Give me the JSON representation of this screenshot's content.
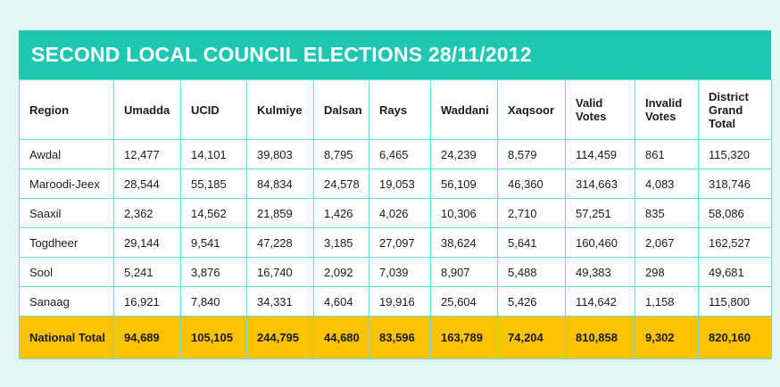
{
  "title": "SECOND LOCAL COUNCIL ELECTIONS 28/11/2012",
  "columns": [
    "Region",
    "Umadda",
    "UCID",
    "Kulmiye",
    "Dalsan",
    "Rays",
    "Waddani",
    "Xaqsoor",
    "Valid Votes",
    "Invalid Votes",
    "District Grand Total"
  ],
  "rows": [
    [
      "Awdal",
      "12,477",
      "14,101",
      "39,803",
      "8,795",
      "6,465",
      "24,239",
      "8,579",
      "114,459",
      "861",
      "115,320"
    ],
    [
      "Maroodi-Jeex",
      "28,544",
      "55,185",
      "84,834",
      "24,578",
      "19,053",
      "56,109",
      "46,360",
      "314,663",
      "4,083",
      "318,746"
    ],
    [
      "Saaxil",
      "2,362",
      "14,562",
      "21,859",
      "1,426",
      "4,026",
      "10,306",
      "2,710",
      "57,251",
      "835",
      "58,086"
    ],
    [
      "Togdheer",
      "29,144",
      "9,541",
      "47,228",
      "3,185",
      "27,097",
      "38,624",
      "5,641",
      "160,460",
      "2,067",
      "162,527"
    ],
    [
      "Sool",
      "5,241",
      "3,876",
      "16,740",
      "2,092",
      "7,039",
      "8,907",
      "5,488",
      "49,383",
      "298",
      "49,681"
    ],
    [
      "Sanaag",
      "16,921",
      "7,840",
      "34,331",
      "4,604",
      "19,916",
      "25,604",
      "5,426",
      "114,642",
      "1,158",
      "115,800"
    ]
  ],
  "total": [
    "National Total",
    "94,689",
    "105,105",
    "244,795",
    "44,680",
    "83,596",
    "163,789",
    "74,204",
    "810,858",
    "9,302",
    "820,160"
  ],
  "colors": {
    "header": "#1ec8b0",
    "total_row": "#fdc201",
    "grid": "#62dde0",
    "background": "#e3f6f6"
  }
}
